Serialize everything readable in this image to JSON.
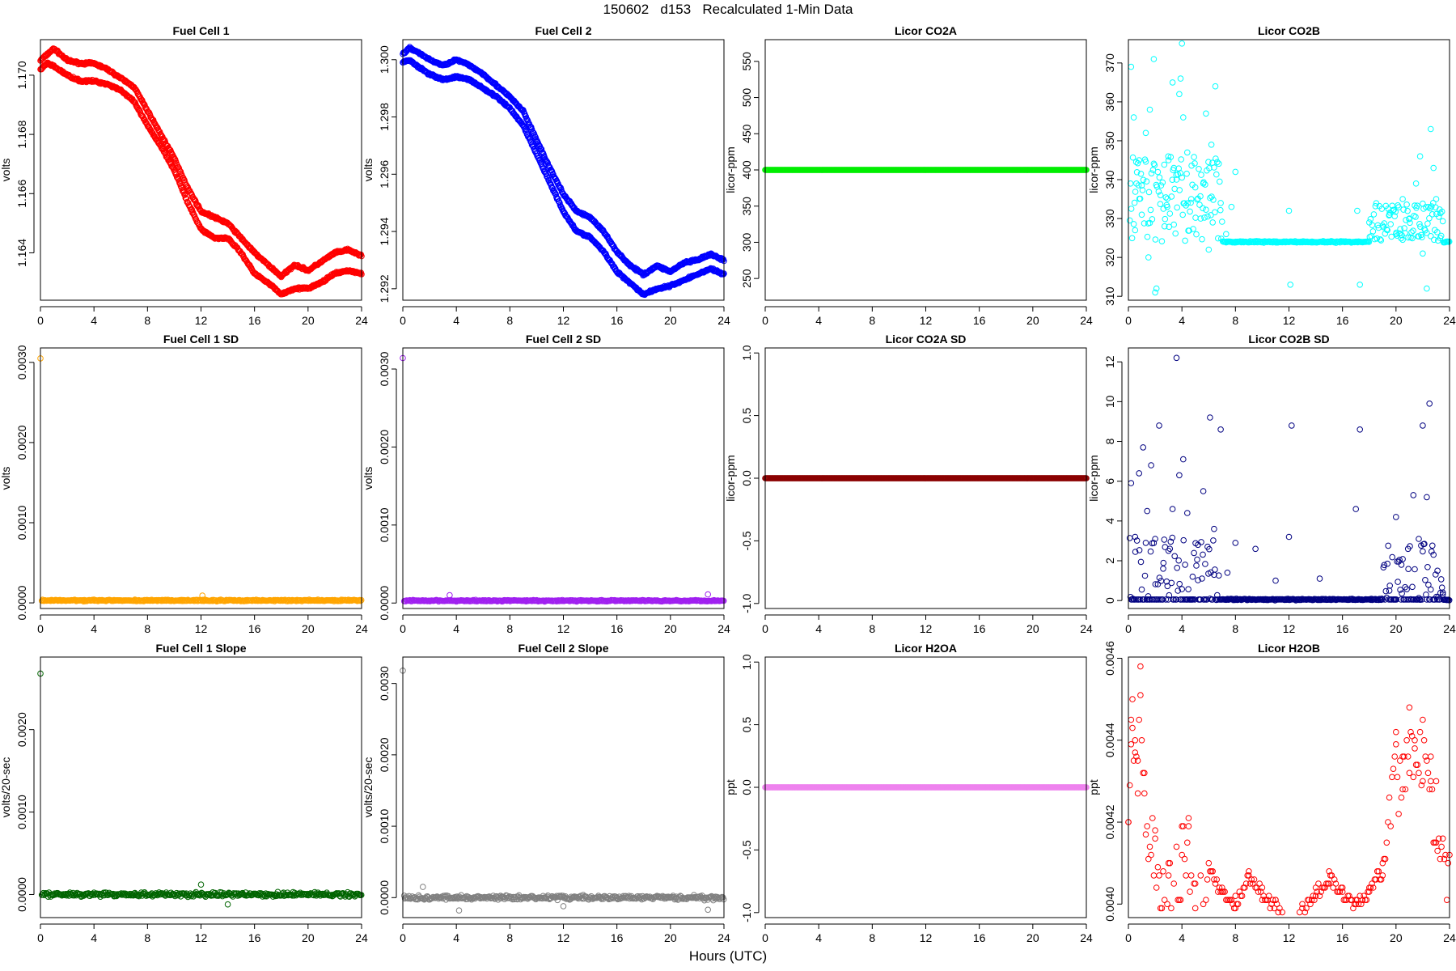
{
  "figure": {
    "title": "150602   d153   Recalculated 1-Min Data",
    "xlabel": "Hours (UTC)"
  },
  "chart_data": [
    {
      "type": "scatter",
      "title": "Fuel Cell 1",
      "ylabel": "volts",
      "color": "#ff0000",
      "xlim": [
        0,
        24
      ],
      "xticks": [
        0,
        4,
        8,
        12,
        16,
        20,
        24
      ],
      "ylim": [
        1.1624,
        1.1712
      ],
      "yticks": [
        1.164,
        1.166,
        1.168,
        1.17
      ],
      "ytick_labels": [
        "1.164",
        "1.166",
        "1.168",
        "1.170"
      ],
      "series": [
        {
          "name": "upper",
          "x": [
            0,
            0.5,
            1,
            2,
            3,
            4,
            5,
            6,
            7,
            8,
            9,
            10,
            11,
            12,
            13,
            14,
            15,
            16,
            17,
            18,
            19,
            20,
            21,
            22,
            23,
            24
          ],
          "y": [
            1.1705,
            1.1707,
            1.1709,
            1.1705,
            1.1704,
            1.1704,
            1.1702,
            1.1699,
            1.1696,
            1.1688,
            1.168,
            1.1672,
            1.1662,
            1.1654,
            1.1652,
            1.165,
            1.1645,
            1.164,
            1.1636,
            1.1632,
            1.1636,
            1.1634,
            1.1637,
            1.164,
            1.1641,
            1.1639
          ]
        },
        {
          "name": "lower",
          "x": [
            0,
            0.5,
            1,
            2,
            3,
            4,
            5,
            6,
            7,
            8,
            9,
            10,
            11,
            12,
            13,
            14,
            15,
            16,
            17,
            18,
            19,
            20,
            21,
            22,
            23,
            24
          ],
          "y": [
            1.1702,
            1.1704,
            1.1703,
            1.17,
            1.1698,
            1.1698,
            1.1697,
            1.1695,
            1.1691,
            1.1683,
            1.1676,
            1.1668,
            1.1657,
            1.1648,
            1.1645,
            1.1645,
            1.164,
            1.1633,
            1.163,
            1.1626,
            1.1628,
            1.1628,
            1.163,
            1.1633,
            1.1634,
            1.1633
          ]
        }
      ]
    },
    {
      "type": "scatter",
      "title": "Fuel Cell 2",
      "ylabel": "volts",
      "color": "#0000ff",
      "xlim": [
        0,
        24
      ],
      "xticks": [
        0,
        4,
        8,
        12,
        16,
        20,
        24
      ],
      "ylim": [
        1.2916,
        1.3007
      ],
      "yticks": [
        1.292,
        1.294,
        1.296,
        1.298,
        1.3
      ],
      "ytick_labels": [
        "1.292",
        "1.294",
        "1.296",
        "1.298",
        "1.300"
      ],
      "series": [
        {
          "name": "upper",
          "x": [
            0,
            0.5,
            1,
            2,
            3,
            4,
            5,
            6,
            7,
            8,
            9,
            10,
            11,
            12,
            13,
            14,
            15,
            16,
            17,
            18,
            19,
            20,
            21,
            22,
            23,
            24
          ],
          "y": [
            1.3002,
            1.3004,
            1.3003,
            1.3,
            1.2998,
            1.3,
            1.2998,
            1.2995,
            1.2991,
            1.2987,
            1.2982,
            1.2972,
            1.2962,
            1.2953,
            1.2947,
            1.2945,
            1.294,
            1.2933,
            1.2928,
            1.2925,
            1.2928,
            1.2926,
            1.2929,
            1.293,
            1.2932,
            1.293
          ]
        },
        {
          "name": "lower",
          "x": [
            0,
            0.5,
            1,
            2,
            3,
            4,
            5,
            6,
            7,
            8,
            9,
            10,
            11,
            12,
            13,
            14,
            15,
            16,
            17,
            18,
            19,
            20,
            21,
            22,
            23,
            24
          ],
          "y": [
            1.2999,
            1.3,
            1.2998,
            1.2995,
            1.2993,
            1.2994,
            1.2993,
            1.299,
            1.2987,
            1.2983,
            1.2977,
            1.2967,
            1.2957,
            1.2947,
            1.294,
            1.2938,
            1.2933,
            1.2926,
            1.2922,
            1.2918,
            1.292,
            1.2921,
            1.2923,
            1.2925,
            1.2927,
            1.2925
          ]
        }
      ]
    },
    {
      "type": "scatter",
      "title": "Licor CO2A",
      "ylabel": "licor-ppm",
      "color": "#00ee00",
      "xlim": [
        0,
        24
      ],
      "xticks": [
        0,
        4,
        8,
        12,
        16,
        20,
        24
      ],
      "ylim": [
        220,
        580
      ],
      "yticks": [
        250,
        300,
        350,
        400,
        450,
        500,
        550
      ],
      "ytick_labels": [
        "250",
        "300",
        "350",
        "400",
        "450",
        "500",
        "550"
      ],
      "series": [
        {
          "name": "CO2A",
          "constant": 400
        }
      ]
    },
    {
      "type": "scatter",
      "title": "Licor CO2B",
      "ylabel": "licor-ppm",
      "color": "#00ffff",
      "xlim": [
        0,
        24
      ],
      "xticks": [
        0,
        4,
        8,
        12,
        16,
        20,
        24
      ],
      "ylim": [
        309,
        376
      ],
      "yticks": [
        310,
        320,
        330,
        340,
        350,
        360,
        370
      ],
      "ytick_labels": [
        "310",
        "320",
        "330",
        "340",
        "350",
        "360",
        "370"
      ],
      "series": [
        {
          "name": "CO2B",
          "baseline": 324,
          "x": [
            0.2,
            0.4,
            0.6,
            0.8,
            1.0,
            1.3,
            1.6,
            1.9,
            2.1,
            2.4,
            2.7,
            3.0,
            3.3,
            3.6,
            3.9,
            4.1,
            4.4,
            4.7,
            5.0,
            5.4,
            5.8,
            6.2,
            6.5,
            6.9,
            7.3,
            7.7,
            8.0,
            12.0,
            12.1,
            17.1,
            17.3,
            18.0,
            19.5,
            20.0,
            20.5,
            21.0,
            21.5,
            21.8,
            22.0,
            22.3,
            22.6,
            22.8,
            23.0,
            23.3,
            0.5,
            1.5,
            2.0,
            2.9,
            3.4,
            3.8,
            4.0,
            5.6,
            6.0,
            6.3
          ],
          "y": [
            369,
            356,
            339,
            345,
            331,
            352,
            358,
            371,
            312,
            336,
            328,
            345,
            365,
            340,
            366,
            356,
            347,
            335,
            338,
            330,
            357,
            349,
            364,
            334,
            326,
            333,
            342,
            332,
            313,
            332,
            313,
            329,
            331,
            326,
            335,
            330,
            339,
            346,
            321,
            312,
            353,
            343,
            335,
            325,
            327,
            320,
            311,
            333,
            343,
            362,
            375,
            339,
            322,
            329
          ]
        }
      ]
    },
    {
      "type": "scatter",
      "title": "Fuel Cell 1 SD",
      "ylabel": "volts",
      "color": "#ffa500",
      "xlim": [
        0,
        24
      ],
      "xticks": [
        0,
        4,
        8,
        12,
        16,
        20,
        24
      ],
      "ylim": [
        -7e-05,
        0.00318
      ],
      "yticks": [
        0,
        0.001,
        0.002,
        0.003
      ],
      "ytick_labels": [
        "0.0000",
        "0.0010",
        "0.0020",
        "0.0030"
      ],
      "series": [
        {
          "name": "SD",
          "baseline": 3e-05,
          "x": [
            0.0,
            12.1
          ],
          "y": [
            0.00305,
            9e-05
          ]
        }
      ]
    },
    {
      "type": "scatter",
      "title": "Fuel Cell 2 SD",
      "ylabel": "volts",
      "color": "#a020f0",
      "xlim": [
        0,
        24
      ],
      "xticks": [
        0,
        4,
        8,
        12,
        16,
        20,
        24
      ],
      "ylim": [
        -7e-05,
        0.00327
      ],
      "yticks": [
        0,
        0.001,
        0.002,
        0.003
      ],
      "ytick_labels": [
        "0.0000",
        "0.0010",
        "0.0020",
        "0.0030"
      ],
      "series": [
        {
          "name": "SD",
          "baseline": 3e-05,
          "x": [
            0.0,
            3.5,
            22.8
          ],
          "y": [
            0.00314,
            0.0001,
            0.00011
          ]
        }
      ]
    },
    {
      "type": "scatter",
      "title": "Licor CO2A SD",
      "ylabel": "licor-ppm",
      "color": "#8b0000",
      "xlim": [
        0,
        24
      ],
      "xticks": [
        0,
        4,
        8,
        12,
        16,
        20,
        24
      ],
      "ylim": [
        -1.04,
        1.04
      ],
      "yticks": [
        -1.0,
        -0.5,
        0.0,
        0.5,
        1.0
      ],
      "ytick_labels": [
        "-1.0",
        "-0.5",
        "0.0",
        "0.5",
        "1.0"
      ],
      "series": [
        {
          "name": "SD",
          "constant": 0.0
        }
      ]
    },
    {
      "type": "scatter",
      "title": "Licor CO2B SD",
      "ylabel": "licor-ppm",
      "color": "#000080",
      "xlim": [
        0,
        24
      ],
      "xticks": [
        0,
        4,
        8,
        12,
        16,
        20,
        24
      ],
      "ylim": [
        -0.4,
        12.7
      ],
      "yticks": [
        0,
        2,
        4,
        6,
        8,
        10,
        12
      ],
      "ytick_labels": [
        "0",
        "2",
        "4",
        "6",
        "8",
        "10",
        "12"
      ],
      "series": [
        {
          "name": "SD",
          "baseline": 0.05,
          "x": [
            0.2,
            0.5,
            0.8,
            1.1,
            1.4,
            1.7,
            2.0,
            2.3,
            2.6,
            3.0,
            3.3,
            3.6,
            3.8,
            4.1,
            4.4,
            4.8,
            5.2,
            5.6,
            6.1,
            6.4,
            6.9,
            7.4,
            8.0,
            9.5,
            11.0,
            12.0,
            12.2,
            14.3,
            17.0,
            17.3,
            19.5,
            20.0,
            20.4,
            20.9,
            21.3,
            21.7,
            22.0,
            22.3,
            22.5,
            22.8,
            23.1,
            23.5
          ],
          "y": [
            5.9,
            3.2,
            6.4,
            7.7,
            4.5,
            6.8,
            3.1,
            8.8,
            1.6,
            2.5,
            4.6,
            12.2,
            6.3,
            7.1,
            4.4,
            1.2,
            2.8,
            5.5,
            9.2,
            3.6,
            8.6,
            1.4,
            2.9,
            2.6,
            1.0,
            3.2,
            8.8,
            1.1,
            4.6,
            8.6,
            0.5,
            4.2,
            1.8,
            2.6,
            5.3,
            3.1,
            8.8,
            5.2,
            9.9,
            2.3,
            1.5,
            0.4
          ]
        }
      ]
    },
    {
      "type": "scatter",
      "title": "Fuel Cell 1 Slope",
      "ylabel": "volts/20-sec",
      "color": "#006400",
      "xlim": [
        0,
        24
      ],
      "xticks": [
        0,
        4,
        8,
        12,
        16,
        20,
        24
      ],
      "ylim": [
        -0.00028,
        0.00288
      ],
      "yticks": [
        0,
        0.001,
        0.002
      ],
      "ytick_labels": [
        "0.0000",
        "0.0010",
        "0.0020"
      ],
      "series": [
        {
          "name": "slope",
          "baseline": 0.0,
          "x": [
            0.0,
            12.0,
            14.0
          ],
          "y": [
            0.00268,
            0.00012,
            -0.00012
          ]
        }
      ]
    },
    {
      "type": "scatter",
      "title": "Fuel Cell 2 Slope",
      "ylabel": "volts/20-sec",
      "color": "#808080",
      "xlim": [
        0,
        24
      ],
      "xticks": [
        0,
        4,
        8,
        12,
        16,
        20,
        24
      ],
      "ylim": [
        -0.00028,
        0.00337
      ],
      "yticks": [
        0,
        0.001,
        0.002,
        0.003
      ],
      "ytick_labels": [
        "0.0000",
        "0.0010",
        "0.0020",
        "0.0030"
      ],
      "series": [
        {
          "name": "slope",
          "baseline": 0.0,
          "x": [
            0.0,
            1.5,
            4.2,
            12.0,
            22.8
          ],
          "y": [
            0.00318,
            0.00015,
            -0.00018,
            -0.00012,
            -0.00017
          ]
        }
      ]
    },
    {
      "type": "scatter",
      "title": "Licor H2OA",
      "ylabel": "ppt",
      "color": "#ee82ee",
      "xlim": [
        0,
        24
      ],
      "xticks": [
        0,
        4,
        8,
        12,
        16,
        20,
        24
      ],
      "ylim": [
        -1.04,
        1.04
      ],
      "yticks": [
        -1.0,
        -0.5,
        0.0,
        0.5,
        1.0
      ],
      "ytick_labels": [
        "-1.0",
        "-0.5",
        "0.0",
        "0.5",
        "1.0"
      ],
      "series": [
        {
          "name": "H2OA",
          "constant": 0.0
        }
      ]
    },
    {
      "type": "scatter",
      "title": "Licor H2OB",
      "ylabel": "ppt",
      "color": "#ff0000",
      "xlim": [
        0,
        24
      ],
      "xticks": [
        0,
        4,
        8,
        12,
        16,
        20,
        24
      ],
      "ylim": [
        0.003967,
        0.004603
      ],
      "yticks": [
        0.004,
        0.0042,
        0.0044,
        0.0046
      ],
      "ytick_labels": [
        "0.0040",
        "0.0042",
        "0.0044",
        "0.0046"
      ],
      "series": [
        {
          "name": "H2OB",
          "quantum": 1e-05,
          "x": [
            0.0,
            0.2,
            0.3,
            0.5,
            0.7,
            0.9,
            1.2,
            2.0,
            3.0,
            4.0,
            4.5,
            5.0,
            6.0,
            7.0,
            8.0,
            9.0,
            10.0,
            11.0,
            11.8,
            12.4,
            13.0,
            14.0,
            15.0,
            16.0,
            17.0,
            18.0,
            19.0,
            20.0,
            20.5,
            21.0,
            21.4,
            22.0,
            22.6,
            23.0,
            24.0
          ],
          "y": [
            0.0042,
            0.00445,
            0.0045,
            0.0044,
            0.00435,
            0.00458,
            0.00432,
            0.00418,
            0.0041,
            0.00419,
            0.00421,
            0.00405,
            0.0041,
            0.00404,
            0.00402,
            0.00408,
            0.00404,
            0.00401,
            0.00397,
            0.00397,
            0.004,
            0.00404,
            0.00408,
            0.00404,
            0.00401,
            0.00404,
            0.0041,
            0.00442,
            0.00436,
            0.00448,
            0.0044,
            0.00445,
            0.00436,
            0.0043,
            0.00412
          ]
        }
      ]
    }
  ]
}
